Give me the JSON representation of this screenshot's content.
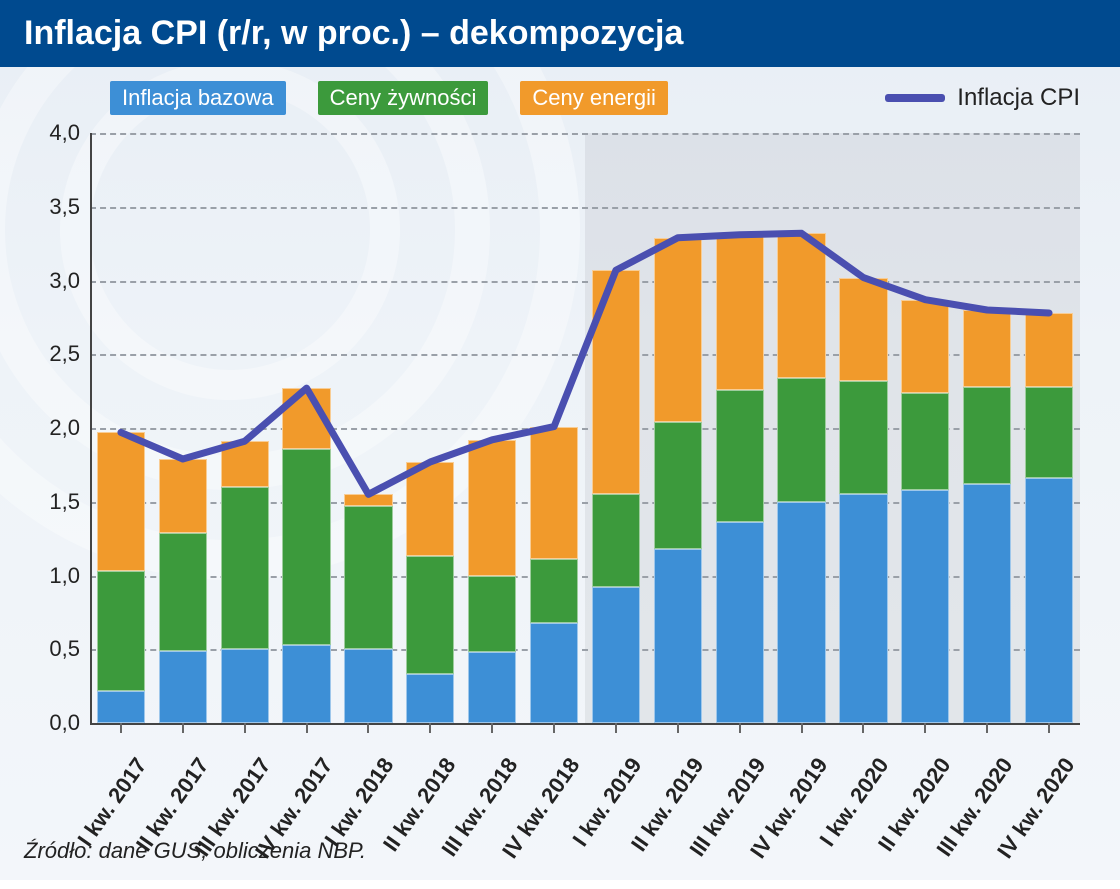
{
  "title": "Inflacja CPI (r/r, w proc.) – dekompozycja",
  "source": "Źródło: dane GUS, obliczenia NBP.",
  "legend": {
    "series": [
      {
        "key": "core",
        "label": "Inflacja bazowa",
        "color": "#3d8fd6"
      },
      {
        "key": "food",
        "label": "Ceny żywności",
        "color": "#3c9a3c"
      },
      {
        "key": "energy",
        "label": "Ceny energii",
        "color": "#f19a2b"
      }
    ],
    "line": {
      "label": "Inflacja CPI",
      "color": "#4a4fb0",
      "width": 7
    }
  },
  "chart": {
    "type": "stacked-bar-with-line",
    "ylim": [
      0,
      4
    ],
    "ytick_step": 0.5,
    "ytick_labels": [
      "0,0",
      "0,5",
      "1,0",
      "1,5",
      "2,0",
      "2,5",
      "3,0",
      "3,5",
      "4,0"
    ],
    "grid_color": "#9aa0a8",
    "axis_color": "#444444",
    "background_color": "transparent",
    "bar_width_ratio": 0.78,
    "forecast_start_index": 8,
    "forecast_band_color": "rgba(120,120,130,0.12)",
    "categories": [
      "I kw. 2017",
      "II kw. 2017",
      "III kw. 2017",
      "IV kw. 2017",
      "I kw. 2018",
      "II kw. 2018",
      "III kw. 2018",
      "IV kw. 2018",
      "I kw. 2019",
      "II kw. 2019",
      "III kw. 2019",
      "IV kw. 2019",
      "I kw. 2020",
      "II kw. 2020",
      "III kw. 2020",
      "IV kw. 2020"
    ],
    "series": {
      "core": [
        0.22,
        0.49,
        0.5,
        0.53,
        0.5,
        0.33,
        0.48,
        0.68,
        0.92,
        1.18,
        1.36,
        1.5,
        1.55,
        1.58,
        1.62,
        1.66
      ],
      "food": [
        0.81,
        0.8,
        1.1,
        1.33,
        0.97,
        0.8,
        0.52,
        0.43,
        0.63,
        0.86,
        0.9,
        0.84,
        0.77,
        0.66,
        0.66,
        0.62
      ],
      "energy": [
        0.94,
        0.5,
        0.31,
        0.41,
        0.08,
        0.64,
        0.92,
        0.9,
        1.52,
        1.25,
        1.05,
        0.98,
        0.7,
        0.63,
        0.52,
        0.5
      ]
    },
    "line_values": [
      1.97,
      1.79,
      1.91,
      2.27,
      1.55,
      1.77,
      1.92,
      2.01,
      3.07,
      3.29,
      3.31,
      3.32,
      3.02,
      2.87,
      2.8,
      2.78
    ],
    "title_fontsize": 34,
    "legend_fontsize": 22,
    "tick_fontsize": 22,
    "xlabel_rotation_deg": -55
  }
}
